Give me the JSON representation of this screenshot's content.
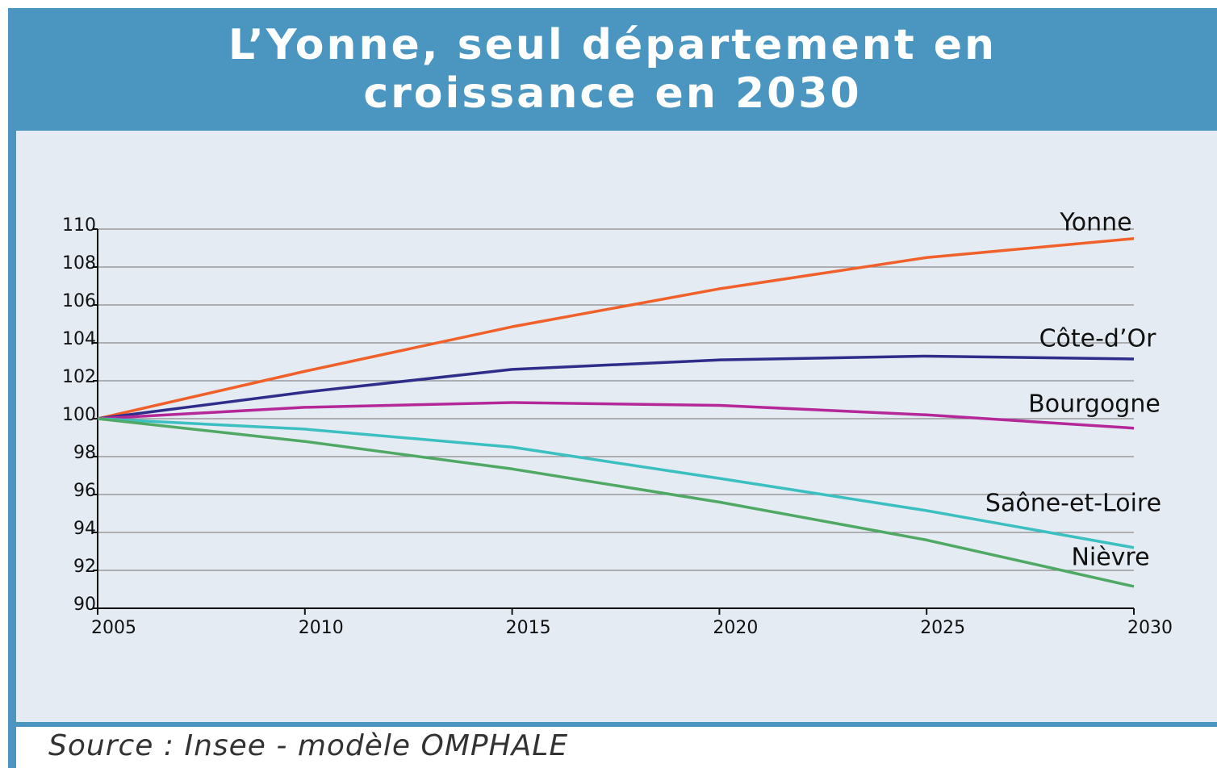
{
  "chart_data": {
    "type": "line",
    "title": "L’Yonne, seul département en croissance en 2030",
    "source": "Source : Insee - modèle OMPHALE",
    "x": [
      2005,
      2010,
      2015,
      2020,
      2025,
      2030
    ],
    "series": [
      {
        "name": "Yonne",
        "color": "#f0602a",
        "values": [
          100,
          102.5,
          104.85,
          106.85,
          108.5,
          109.5
        ]
      },
      {
        "name": "Côte-d’Or",
        "color": "#2e2e8a",
        "values": [
          100,
          101.4,
          102.6,
          103.1,
          103.3,
          103.15
        ]
      },
      {
        "name": "Bourgogne",
        "color": "#b5289a",
        "values": [
          100,
          100.6,
          100.85,
          100.7,
          100.2,
          99.5
        ]
      },
      {
        "name": "Saône-et-Loire",
        "color": "#3cbfc0",
        "values": [
          100,
          99.45,
          98.5,
          96.85,
          95.15,
          93.2
        ]
      },
      {
        "name": "Nièvre",
        "color": "#4fa864",
        "values": [
          100,
          98.8,
          97.35,
          95.6,
          93.6,
          91.15
        ]
      }
    ],
    "xlim": [
      2005,
      2030
    ],
    "xticks": [
      2005,
      2010,
      2015,
      2020,
      2025,
      2030
    ],
    "ylim": [
      90,
      110
    ],
    "yticks": [
      90,
      92,
      94,
      96,
      98,
      100,
      102,
      104,
      106,
      108,
      110
    ],
    "grid": true
  }
}
